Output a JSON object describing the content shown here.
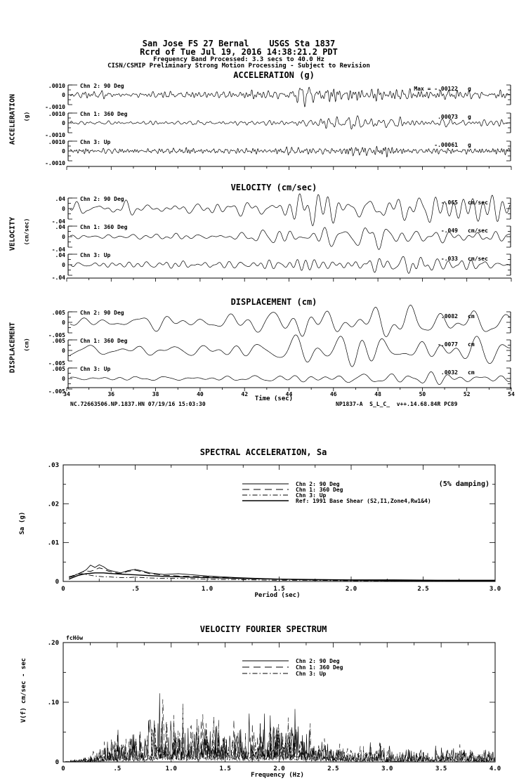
{
  "header": {
    "line1": "San Jose FS 27 Bernal    USGS Sta 1837",
    "line2": "Rcrd of Tue Jul 19, 2016 14:38:21.2 PDT",
    "line3": "Frequency Band Processed: 3.3 secs to 40.0 Hz",
    "line4": "CISN/CSMIP Preliminary Strong Motion Processing - Subject to Revision"
  },
  "footer": {
    "left": "NC.72663506.NP.1837.HN 07/19/16 15:03:30",
    "right": "NP1837-A  S_L_C_  v++.14.68.84R PC89"
  },
  "chart_data": [
    {
      "type": "line",
      "group": "time-series",
      "title": "ACCELERATION (g)",
      "side_label": "ACCELERATION",
      "side_sublabel": "(g)",
      "x_range": [
        34,
        54
      ],
      "x_tick_labels": [
        "34",
        "36",
        "38",
        "40",
        "42",
        "44",
        "46",
        "48",
        "50",
        "52",
        "54"
      ],
      "y_tick_labels": [
        ".0010",
        "0",
        "-.0010"
      ],
      "y_limit": 0.001,
      "traces": [
        {
          "channel": "Chn 2: 90 Deg",
          "max_prefix": "Max = ",
          "max_value": "-.00122",
          "unit": "g",
          "peak": -0.00122,
          "seed": 21,
          "freq_band_hz": [
            2.2,
            9.0
          ],
          "envelope": [
            [
              34,
              0.3
            ],
            [
              41,
              0.32
            ],
            [
              42,
              0.45
            ],
            [
              43.5,
              0.55
            ],
            [
              44.5,
              1.0
            ],
            [
              45.5,
              0.55
            ],
            [
              46.5,
              0.6
            ],
            [
              47.5,
              0.75
            ],
            [
              48.5,
              0.6
            ],
            [
              50,
              0.45
            ],
            [
              51.5,
              0.55
            ],
            [
              53,
              0.45
            ],
            [
              54,
              0.42
            ]
          ]
        },
        {
          "channel": "Chn 1: 360 Deg",
          "max_value": ".00073",
          "unit": "g",
          "peak": 0.00073,
          "seed": 22,
          "freq_band_hz": [
            1.8,
            7.0
          ],
          "envelope": [
            [
              34,
              0.3
            ],
            [
              41,
              0.34
            ],
            [
              43,
              0.45
            ],
            [
              44.5,
              0.6
            ],
            [
              45.5,
              0.8
            ],
            [
              46.5,
              1.0
            ],
            [
              47.5,
              0.9
            ],
            [
              49,
              0.75
            ],
            [
              50.5,
              0.6
            ],
            [
              52,
              0.55
            ],
            [
              53.2,
              0.6
            ],
            [
              54,
              0.5
            ]
          ]
        },
        {
          "channel": "Chn 3: Up",
          "max_value": "-.00061",
          "unit": "g",
          "peak": -0.00061,
          "seed": 23,
          "freq_band_hz": [
            3.0,
            11.0
          ],
          "envelope": [
            [
              34,
              0.45
            ],
            [
              42,
              0.5
            ],
            [
              44,
              0.6
            ],
            [
              45,
              0.55
            ],
            [
              46.5,
              0.75
            ],
            [
              47.5,
              1.0
            ],
            [
              49,
              0.6
            ],
            [
              51,
              0.5
            ],
            [
              53,
              0.55
            ],
            [
              53.6,
              0.95
            ],
            [
              54,
              0.85
            ]
          ]
        }
      ]
    },
    {
      "type": "line",
      "group": "time-series",
      "title": "VELOCITY (cm/sec)",
      "side_label": "VELOCITY",
      "side_sublabel": "(cm/sec)",
      "x_range": [
        34,
        54
      ],
      "x_tick_labels": [
        "34",
        "36",
        "38",
        "40",
        "42",
        "44",
        "46",
        "48",
        "50",
        "52",
        "54"
      ],
      "y_tick_labels": [
        ".04",
        "0",
        "-.04"
      ],
      "y_limit": 0.04,
      "traces": [
        {
          "channel": "Chn 2: 90 Deg",
          "max_value": "-.065",
          "unit": "cm/sec",
          "peak": -0.065,
          "seed": 31,
          "freq_band_hz": [
            0.8,
            2.8
          ],
          "envelope": [
            [
              34,
              0.25
            ],
            [
              40,
              0.3
            ],
            [
              42,
              0.45
            ],
            [
              43.5,
              0.7
            ],
            [
              44.5,
              1.0
            ],
            [
              45.5,
              0.8
            ],
            [
              46.5,
              0.6
            ],
            [
              47.5,
              0.75
            ],
            [
              49,
              0.8
            ],
            [
              50.2,
              0.7
            ],
            [
              51,
              0.55
            ],
            [
              52.5,
              0.75
            ],
            [
              54,
              0.6
            ]
          ]
        },
        {
          "channel": "Chn 1: 360 Deg",
          "max_value": "-.049",
          "unit": "cm/sec",
          "peak": -0.049,
          "seed": 32,
          "freq_band_hz": [
            0.8,
            2.6
          ],
          "envelope": [
            [
              34,
              0.25
            ],
            [
              40,
              0.3
            ],
            [
              42,
              0.5
            ],
            [
              43.5,
              0.7
            ],
            [
              44.7,
              1.0
            ],
            [
              46,
              0.85
            ],
            [
              47.5,
              0.8
            ],
            [
              49,
              0.7
            ],
            [
              50.5,
              0.75
            ],
            [
              52,
              0.6
            ],
            [
              53,
              0.7
            ],
            [
              54,
              0.6
            ]
          ]
        },
        {
          "channel": "Chn 3: Up",
          "max_value": "-.033",
          "unit": "cm/sec",
          "peak": -0.033,
          "seed": 33,
          "freq_band_hz": [
            1.0,
            3.2
          ],
          "envelope": [
            [
              34,
              0.3
            ],
            [
              41,
              0.35
            ],
            [
              43,
              0.6
            ],
            [
              44.5,
              0.8
            ],
            [
              46,
              0.5
            ],
            [
              47.5,
              0.6
            ],
            [
              48.5,
              0.8
            ],
            [
              49.5,
              1.0
            ],
            [
              50.5,
              0.6
            ],
            [
              52,
              0.5
            ],
            [
              54,
              0.45
            ]
          ]
        }
      ]
    },
    {
      "type": "line",
      "group": "time-series",
      "title": "DISPLACEMENT (cm)",
      "side_label": "DISPLACEMENT",
      "side_sublabel": "(cm)",
      "xlabel": "Time (sec)",
      "x_range": [
        34,
        54
      ],
      "x_tick_labels": [
        "34",
        "36",
        "38",
        "40",
        "42",
        "44",
        "46",
        "48",
        "50",
        "52",
        "54"
      ],
      "y_tick_labels": [
        ".005",
        "0",
        "-.005"
      ],
      "y_limit": 0.005,
      "traces": [
        {
          "channel": "Chn 2: 90 Deg",
          "max_value": ".0082",
          "unit": "cm",
          "peak": 0.0082,
          "seed": 41,
          "freq_band_hz": [
            0.45,
            1.5
          ],
          "envelope": [
            [
              34,
              0.25
            ],
            [
              40,
              0.3
            ],
            [
              41.5,
              0.45
            ],
            [
              43,
              0.55
            ],
            [
              44.6,
              1.0
            ],
            [
              45.5,
              0.6
            ],
            [
              46.5,
              0.7
            ],
            [
              48,
              0.8
            ],
            [
              49.5,
              0.9
            ],
            [
              50.5,
              0.7
            ],
            [
              52,
              0.6
            ],
            [
              53.5,
              0.8
            ],
            [
              54,
              0.7
            ]
          ]
        },
        {
          "channel": "Chn 1: 360 Deg",
          "max_value": "-.0077",
          "unit": "cm",
          "peak": -0.0077,
          "seed": 42,
          "freq_band_hz": [
            0.45,
            1.4
          ],
          "envelope": [
            [
              34,
              0.3
            ],
            [
              40,
              0.35
            ],
            [
              42,
              0.5
            ],
            [
              43.5,
              0.6
            ],
            [
              44.5,
              0.7
            ],
            [
              46,
              0.6
            ],
            [
              47.5,
              0.7
            ],
            [
              49.4,
              1.0
            ],
            [
              50.5,
              0.7
            ],
            [
              52,
              0.5
            ],
            [
              53.5,
              0.75
            ],
            [
              54,
              0.65
            ]
          ]
        },
        {
          "channel": "Chn 3: Up",
          "max_value": ".0032",
          "unit": "cm",
          "peak": 0.0032,
          "seed": 43,
          "freq_band_hz": [
            0.55,
            1.7
          ],
          "envelope": [
            [
              34,
              0.2
            ],
            [
              41,
              0.3
            ],
            [
              42.5,
              0.5
            ],
            [
              44,
              0.6
            ],
            [
              45.5,
              0.5
            ],
            [
              47,
              0.55
            ],
            [
              48.5,
              0.7
            ],
            [
              49.6,
              1.0
            ],
            [
              51,
              0.6
            ],
            [
              52.5,
              0.55
            ],
            [
              54,
              0.5
            ]
          ]
        }
      ]
    },
    {
      "type": "line",
      "group": "response-spectrum",
      "title": "SPECTRAL ACCELERATION, Sa",
      "damping_note": "(5% damping)",
      "xlabel": "Period (sec)",
      "ylabel": "Sa (g)",
      "xlim": [
        0,
        3.0
      ],
      "ylim": [
        0,
        0.03
      ],
      "x_tick_labels": [
        "0",
        ".5",
        "1.0",
        "1.5",
        "2.0",
        "2.5",
        "3.0"
      ],
      "y_tick_labels": [
        ".03",
        ".02",
        ".01",
        "0"
      ],
      "legend": [
        {
          "label": "Chn 2: 90 Deg",
          "dash": "solid"
        },
        {
          "label": "Chn 1: 360 Deg",
          "dash": "dash"
        },
        {
          "label": "Chn 3: Up",
          "dash": "dashdot"
        },
        {
          "label": "Ref: 1991 Base Shear (S2,I1,Zone4,Rw1&4)",
          "dash": "ref"
        }
      ],
      "periods": [
        0.04,
        0.06,
        0.08,
        0.1,
        0.13,
        0.16,
        0.19,
        0.22,
        0.25,
        0.28,
        0.31,
        0.35,
        0.4,
        0.45,
        0.5,
        0.55,
        0.6,
        0.7,
        0.8,
        0.9,
        1.0,
        1.1,
        1.2,
        1.35,
        1.5,
        1.7,
        2.0,
        2.3,
        2.6,
        3.0
      ],
      "series": [
        {
          "name": "Chn 2: 90 Deg",
          "dash": "solid",
          "values": [
            0.0012,
            0.0014,
            0.0016,
            0.0019,
            0.0024,
            0.003,
            0.0042,
            0.0036,
            0.0043,
            0.0038,
            0.003,
            0.0026,
            0.0022,
            0.0028,
            0.0031,
            0.0027,
            0.0022,
            0.0018,
            0.002,
            0.0017,
            0.0014,
            0.0012,
            0.001,
            0.0008,
            0.0006,
            0.0004,
            0.0003,
            0.0002,
            0.0002,
            0.0001
          ]
        },
        {
          "name": "Chn 1: 360 Deg",
          "dash": "dash",
          "values": [
            0.001,
            0.0012,
            0.0015,
            0.0019,
            0.0024,
            0.0027,
            0.0026,
            0.003,
            0.0035,
            0.0032,
            0.0027,
            0.0023,
            0.002,
            0.0026,
            0.0029,
            0.0025,
            0.002,
            0.0016,
            0.0014,
            0.0013,
            0.0012,
            0.001,
            0.0009,
            0.0007,
            0.0005,
            0.0004,
            0.0003,
            0.0002,
            0.0002,
            0.0001
          ]
        },
        {
          "name": "Chn 3: Up",
          "dash": "dashdot",
          "values": [
            0.0012,
            0.0014,
            0.0017,
            0.0019,
            0.002,
            0.0018,
            0.0016,
            0.0014,
            0.0013,
            0.0012,
            0.0012,
            0.0011,
            0.001,
            0.001,
            0.0011,
            0.001,
            0.0009,
            0.0008,
            0.0008,
            0.0007,
            0.0006,
            0.0005,
            0.0005,
            0.0004,
            0.0003,
            0.0003,
            0.0002,
            0.0002,
            0.0001,
            0.0001
          ]
        },
        {
          "name": "Ref: 1991 Base Shear (S2,I1,Zone4,Rw1&4)",
          "dash": "ref",
          "values": [
            0.0006,
            0.0009,
            0.0012,
            0.0015,
            0.0018,
            0.002,
            0.0021,
            0.0022,
            0.0022,
            0.0022,
            0.0021,
            0.002,
            0.0019,
            0.0018,
            0.0017,
            0.0016,
            0.0015,
            0.0013,
            0.0012,
            0.0011,
            0.001,
            0.0009,
            0.0008,
            0.0007,
            0.0006,
            0.0005,
            0.0004,
            0.0004,
            0.0003,
            0.0003
          ]
        }
      ]
    },
    {
      "type": "line",
      "group": "fourier-spectrum",
      "title": "VELOCITY FOURIER SPECTRUM",
      "corner_marker": "fcHöw",
      "xlabel": "Frequency (Hz)",
      "ylabel": "V(f)  cm/sec - sec",
      "xlim": [
        0,
        4.0
      ],
      "ylim": [
        0,
        0.2
      ],
      "x_tick_labels": [
        "0",
        ".5",
        "1.0",
        "1.5",
        "2.0",
        "2.5",
        "3.0",
        "3.5",
        "4.0"
      ],
      "y_tick_labels": [
        ".20",
        ".10",
        "0"
      ],
      "legend": [
        {
          "label": "Chn 2: 90 Deg",
          "dash": "solid"
        },
        {
          "label": "Chn 1: 360 Deg",
          "dash": "dash"
        },
        {
          "label": "Chn 3: Up",
          "dash": "dashdot"
        }
      ],
      "channels": [
        {
          "name": "Chn 2: 90 Deg",
          "dash": "solid",
          "peak": 0.115,
          "seed": 91
        },
        {
          "name": "Chn 1: 360 Deg",
          "dash": "dash",
          "peak": 0.105,
          "seed": 92
        },
        {
          "name": "Chn 3: Up",
          "dash": "dashdot",
          "peak": 0.065,
          "seed": 93
        }
      ],
      "envelope": [
        [
          0,
          0
        ],
        [
          0.05,
          0.001
        ],
        [
          0.15,
          0.004
        ],
        [
          0.3,
          0.01
        ],
        [
          0.45,
          0.025
        ],
        [
          0.55,
          0.028
        ],
        [
          0.65,
          0.03
        ],
        [
          0.75,
          0.04
        ],
        [
          0.85,
          0.055
        ],
        [
          0.93,
          0.07
        ],
        [
          1.0,
          0.055
        ],
        [
          1.1,
          0.05
        ],
        [
          1.2,
          0.048
        ],
        [
          1.3,
          0.062
        ],
        [
          1.4,
          0.045
        ],
        [
          1.55,
          0.05
        ],
        [
          1.7,
          0.04
        ],
        [
          1.85,
          0.045
        ],
        [
          2.0,
          0.052
        ],
        [
          2.15,
          0.042
        ],
        [
          2.25,
          0.04
        ],
        [
          2.35,
          0.025
        ],
        [
          2.5,
          0.02
        ],
        [
          2.7,
          0.015
        ],
        [
          2.9,
          0.018
        ],
        [
          3.1,
          0.012
        ],
        [
          3.3,
          0.013
        ],
        [
          3.5,
          0.014
        ],
        [
          3.7,
          0.017
        ],
        [
          3.85,
          0.012
        ],
        [
          4.0,
          0.01
        ]
      ]
    }
  ]
}
